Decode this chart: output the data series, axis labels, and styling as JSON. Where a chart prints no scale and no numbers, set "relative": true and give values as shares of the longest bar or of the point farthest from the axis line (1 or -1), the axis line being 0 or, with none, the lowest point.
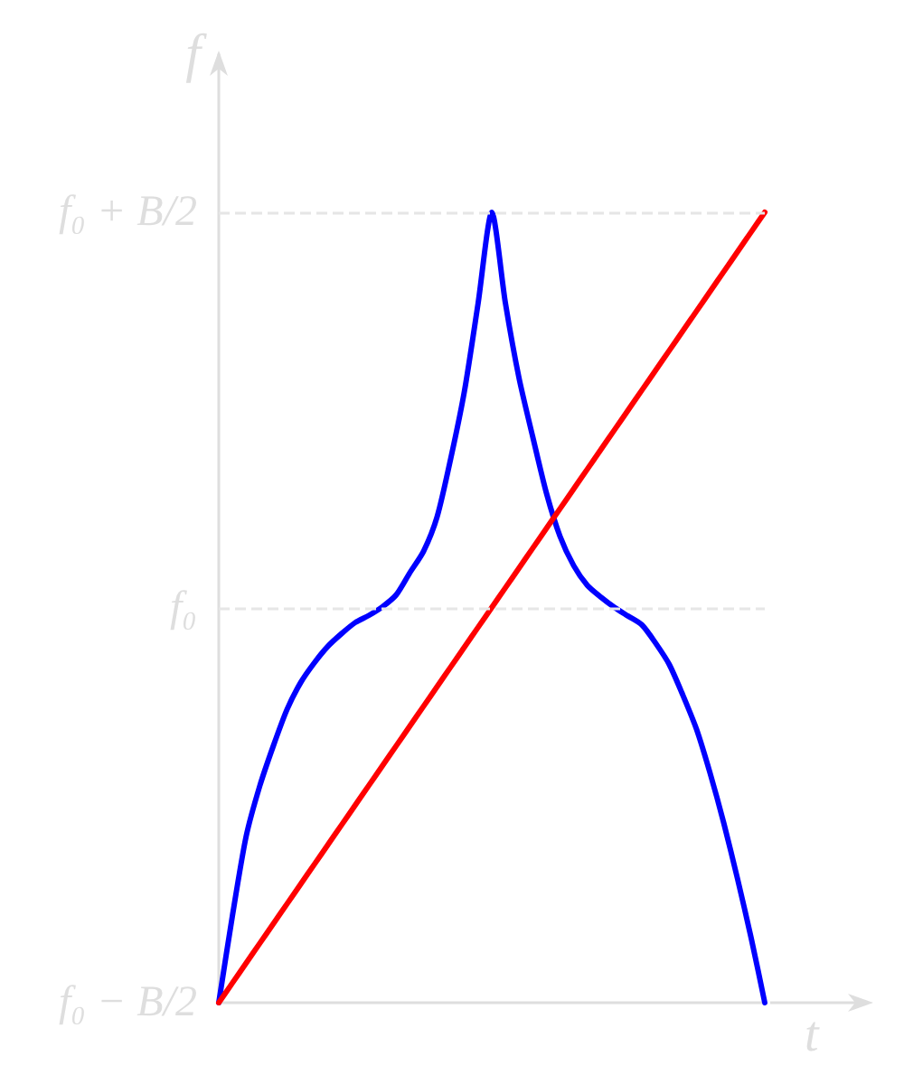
{
  "chart_data": {
    "type": "line",
    "xlabel": "t",
    "ylabel": "f",
    "relative": true,
    "categories": [
      null,
      null,
      null,
      null,
      null,
      null,
      null,
      null,
      null,
      null,
      null,
      null,
      null,
      null,
      null,
      null,
      null,
      null,
      null,
      null,
      null,
      null,
      null,
      null,
      null,
      null,
      null,
      null,
      null,
      null,
      null,
      null,
      null,
      null,
      null,
      null,
      null,
      null,
      null,
      null,
      null
    ],
    "series": [
      {
        "color": "#0000ff",
        "values": [
          0,
          0.11,
          0.21,
          0.274,
          0.325,
          0.371,
          0.405,
          0.43,
          0.451,
          0.467,
          0.481,
          0.49,
          0.501,
          0.516,
          0.544,
          0.571,
          0.615,
          0.689,
          0.774,
          0.885,
          1,
          0.885,
          0.79,
          0.716,
          0.645,
          0.59,
          0.553,
          0.528,
          0.513,
          0.5,
          0.489,
          0.478,
          0.455,
          0.428,
          0.389,
          0.346,
          0.29,
          0.227,
          0.157,
          0.082,
          0
        ]
      },
      {
        "color": "#ff0000",
        "values": [
          0,
          0.025,
          0.05,
          0.075,
          0.1,
          0.125,
          0.15,
          0.175,
          0.2,
          0.225,
          0.25,
          0.275,
          0.3,
          0.325,
          0.35,
          0.375,
          0.4,
          0.425,
          0.45,
          0.475,
          0.5,
          0.525,
          0.55,
          0.575,
          0.6,
          0.625,
          0.65,
          0.675,
          0.7,
          0.725,
          0.75,
          0.775,
          0.8,
          0.825,
          0.85,
          0.875,
          0.9,
          0.925,
          0.95,
          0.975,
          1
        ]
      }
    ],
    "ref_lines": [
      {
        "axis": "y",
        "value": 1,
        "label": "f₀ + B/2",
        "color": "#e6e6e6",
        "line_style": "dashed"
      },
      {
        "axis": "y",
        "value": 0.5,
        "label": "f₀",
        "color": "#e6e6e6",
        "line_style": "dashed"
      }
    ],
    "annotations": [
      "f₀ − B/2"
    ],
    "line_style": "solid"
  }
}
